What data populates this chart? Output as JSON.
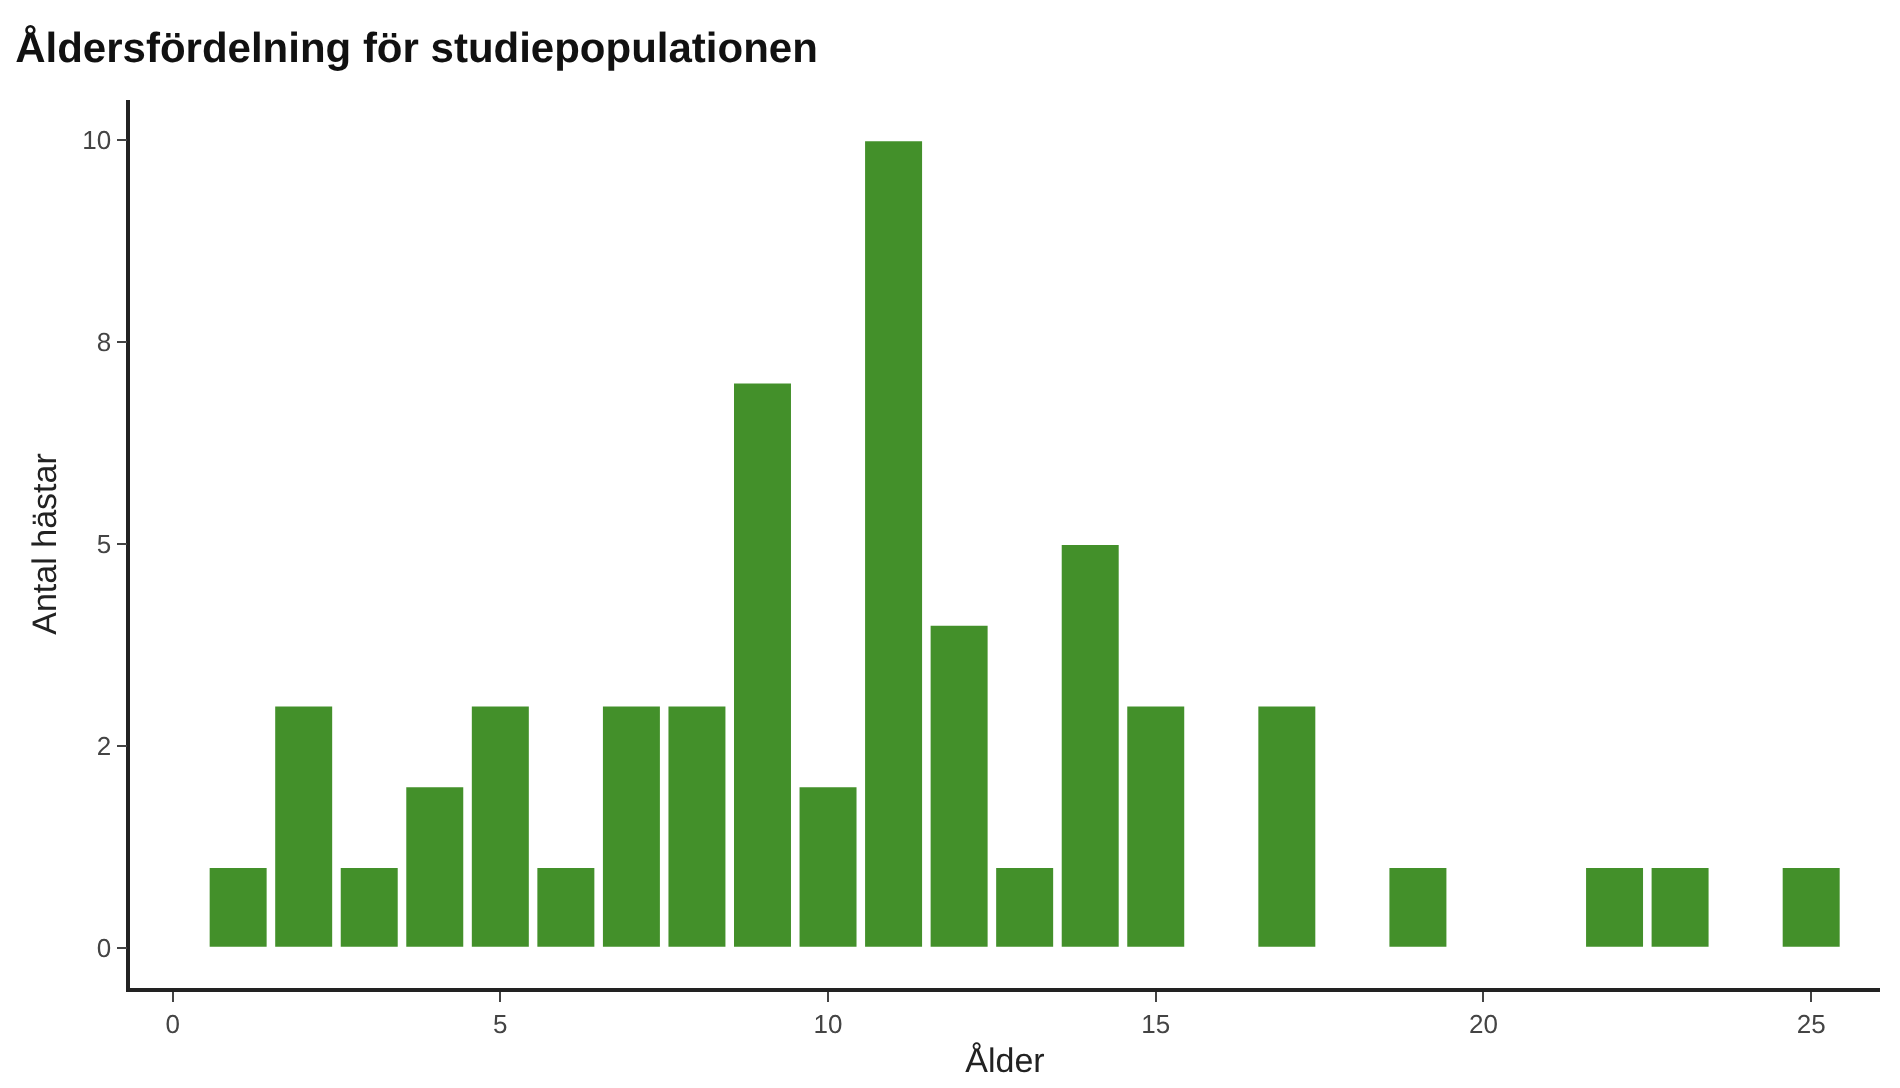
{
  "chart_data": {
    "type": "bar",
    "title": "Åldersfördelning för studiepopulationen",
    "xlabel": "Ålder",
    "ylabel": "Antal hästar",
    "x": [
      1,
      2,
      3,
      4,
      5,
      6,
      7,
      8,
      9,
      10,
      11,
      12,
      13,
      14,
      15,
      17,
      19,
      22,
      23,
      25
    ],
    "values": [
      1,
      3,
      1,
      2,
      3,
      1,
      3,
      3,
      7,
      2,
      10,
      4,
      1,
      5,
      3,
      3,
      1,
      1,
      1,
      1
    ],
    "color": "#43902a",
    "xlim": [
      -0.65,
      26.05
    ],
    "xticks": [
      0,
      5,
      10,
      15,
      20,
      25
    ],
    "ylim": [
      -0.5,
      10.5
    ],
    "yticks": [
      0,
      {
        "value": 2.5,
        "label": "2"
      },
      5,
      {
        "value": 7.5,
        "label": "8"
      },
      10
    ],
    "grid": false,
    "legend": false
  }
}
